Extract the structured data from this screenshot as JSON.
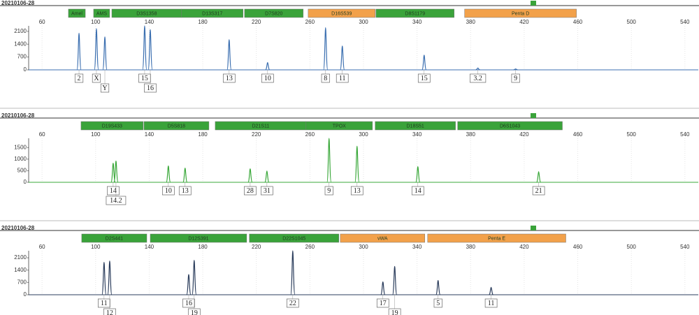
{
  "chart_data": [
    {
      "type": "peak",
      "title": "20210106-28",
      "xlim": [
        50,
        550
      ],
      "xticks": [
        60,
        100,
        140,
        180,
        220,
        260,
        300,
        340,
        380,
        420,
        460,
        500,
        540
      ],
      "ylim": [
        0,
        2400
      ],
      "yticks": [
        0,
        700,
        1400,
        2100
      ],
      "loci": [
        {
          "name": "Amel",
          "color": "#3aa33a",
          "start": 79.7,
          "end": 92.3
        },
        {
          "name": "AMS",
          "color": "#3aa33a",
          "start": 98.5,
          "end": 110.5
        },
        {
          "name": "D3S1358",
          "color": "#3aa33a",
          "start": 112.1,
          "end": 164.2
        },
        {
          "name": "D13S317",
          "color": "#3aa33a",
          "start": 164.2,
          "end": 210.1
        },
        {
          "name": "D7S820",
          "color": "#3aa33a",
          "start": 211.2,
          "end": 255.0
        },
        {
          "name": "D16S539",
          "color": "#f2a14a",
          "start": 258.7,
          "end": 308.7
        },
        {
          "name": "D8S1179",
          "color": "#3aa33a",
          "start": 309.3,
          "end": 367.7
        },
        {
          "name": "Penta D",
          "color": "#f2a14a",
          "start": 375.5,
          "end": 459.0
        }
      ],
      "color": "#3b6fb0",
      "x": [
        87.6,
        100.6,
        106.9,
        136.6,
        140.8,
        199.7,
        228.4,
        271.7,
        284.2,
        345.3,
        385.4,
        413.6
      ],
      "values": [
        2000,
        2250,
        1800,
        2400,
        2200,
        1650,
        400,
        2300,
        1300,
        800,
        100,
        50
      ],
      "labels": [
        "2",
        "X",
        "Y",
        "15",
        "16",
        "13",
        "10",
        "8",
        "11",
        "15",
        "3.2",
        "9"
      ]
    },
    {
      "type": "peak",
      "title": "20210106-28",
      "xlim": [
        50,
        550
      ],
      "xticks": [
        60,
        100,
        140,
        180,
        220,
        260,
        300,
        340,
        380,
        420,
        460,
        500,
        540
      ],
      "ylim": [
        0,
        1900
      ],
      "yticks": [
        0,
        500,
        1000,
        1500
      ],
      "loci": [
        {
          "name": "D19S433",
          "color": "#3aa33a",
          "start": 89.1,
          "end": 135.5
        },
        {
          "name": "D5S818",
          "color": "#3aa33a",
          "start": 136.1,
          "end": 184.6
        },
        {
          "name": "D21S11",
          "color": "#3aa33a",
          "start": 189.3,
          "end": 257.1
        },
        {
          "name": "TPOX",
          "color": "#3aa33a",
          "start": 257.1,
          "end": 306.7
        },
        {
          "name": "D18S51",
          "color": "#3aa33a",
          "start": 308.7,
          "end": 368.7
        },
        {
          "name": "D6S1043",
          "color": "#3aa33a",
          "start": 370.3,
          "end": 448.5
        }
      ],
      "color": "#3aa83a",
      "x": [
        113.1,
        115.2,
        154.3,
        166.8,
        215.4,
        227.9,
        274.3,
        295.2,
        340.6,
        430.8
      ],
      "values": [
        827,
        919,
        705,
        613,
        582,
        490,
        1900,
        1563,
        674,
        460
      ],
      "labels": [
        "14",
        "14.2",
        "10",
        "13",
        "28",
        "31",
        "9",
        "13",
        "14",
        "21"
      ]
    },
    {
      "type": "peak",
      "title": "20210106-28",
      "xlim": [
        50,
        550
      ],
      "xticks": [
        60,
        100,
        140,
        180,
        220,
        260,
        300,
        340,
        380,
        420,
        460,
        500,
        540
      ],
      "ylim": [
        0,
        2500
      ],
      "yticks": [
        0,
        700,
        1400,
        2100
      ],
      "loci": [
        {
          "name": "D2S441",
          "color": "#3aa33a",
          "start": 89.6,
          "end": 138.2
        },
        {
          "name": "D12S391",
          "color": "#3aa33a",
          "start": 140.8,
          "end": 212.8
        },
        {
          "name": "D22S1045",
          "color": "#3aa33a",
          "start": 214.8,
          "end": 281.6
        },
        {
          "name": "vWA",
          "color": "#f2a14a",
          "start": 282.7,
          "end": 345.8
        },
        {
          "name": "Penta E",
          "color": "#f2a14a",
          "start": 347.9,
          "end": 451.1
        }
      ],
      "color": "#2b3d5c",
      "x": [
        106.3,
        110.5,
        169.5,
        173.6,
        247.2,
        314.5,
        323.3,
        355.7,
        395.3
      ],
      "values": [
        1846,
        1923,
        1154,
        1962,
        2500,
        731,
        1615,
        808,
        423
      ],
      "labels": [
        "11",
        "12",
        "16",
        "19",
        "22",
        "17",
        "19",
        "5",
        "11"
      ]
    }
  ]
}
